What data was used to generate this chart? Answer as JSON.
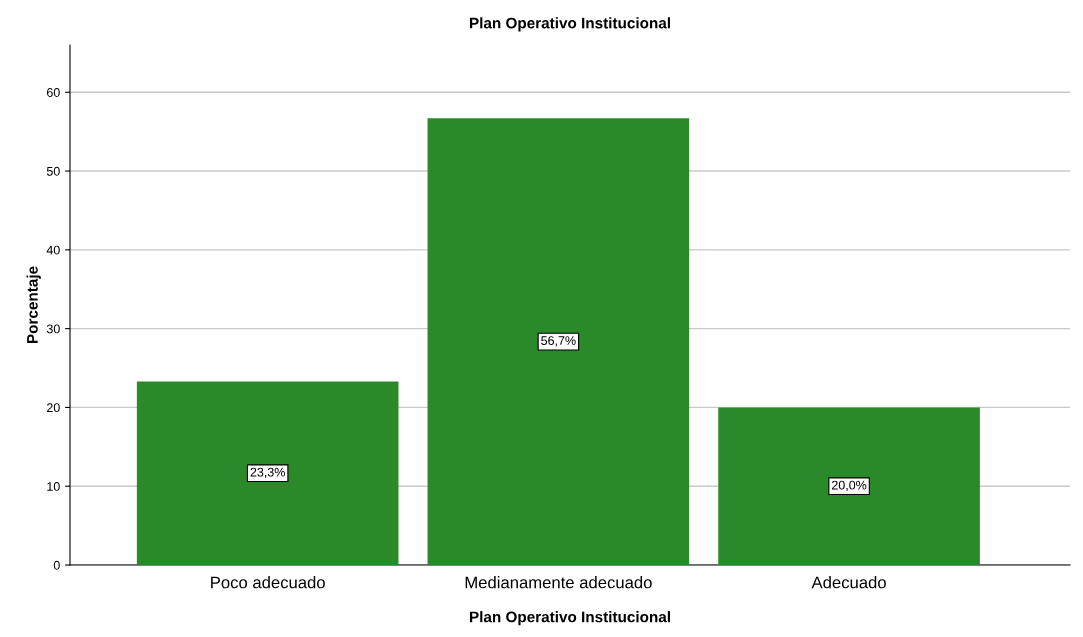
{
  "chart_data": {
    "type": "bar",
    "title": "Plan Operativo Institucional",
    "xlabel": "Plan Operativo Institucional",
    "ylabel": "Porcentaje",
    "categories": [
      "Poco adecuado",
      "Medianamente adecuado",
      "Adecuado"
    ],
    "values": [
      23.3,
      56.7,
      20.0
    ],
    "color": "#2a8a2a",
    "value_labels": [
      "23,3%",
      "56,7%",
      "20,0%"
    ],
    "ylim": [
      0,
      66
    ],
    "yticks": [
      0,
      10,
      20,
      30,
      40,
      50,
      60
    ],
    "grid": "y"
  }
}
